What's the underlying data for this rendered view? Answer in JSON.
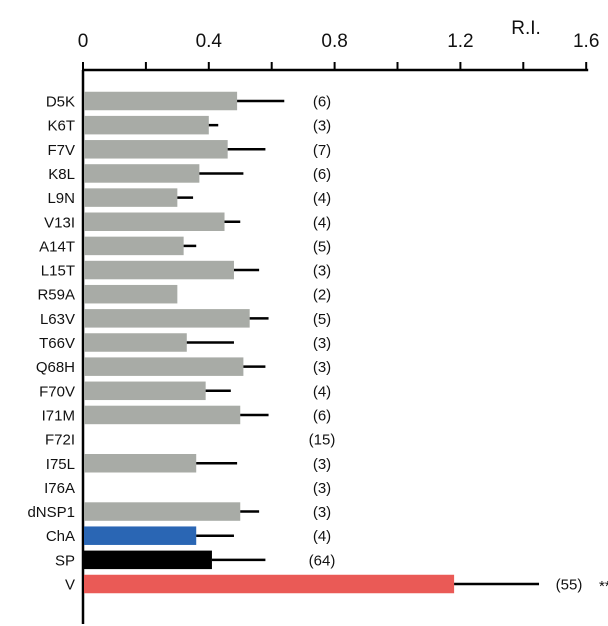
{
  "chart_data": {
    "type": "bar",
    "orientation": "horizontal",
    "axis_label": "R.I.",
    "xlim": [
      0,
      1.6
    ],
    "xticks": [
      "0",
      "0.4",
      "0.8",
      "1.2",
      "1.6"
    ],
    "categories": [
      "D5K",
      "K6T",
      "F7V",
      "K8L",
      "L9N",
      "V13I",
      "A14T",
      "L15T",
      "R59A",
      "L63V",
      "T66V",
      "Q68H",
      "F70V",
      "I71M",
      "F72I",
      "I75L",
      "I76A",
      "dNSP1",
      "ChA",
      "SP",
      "V"
    ],
    "values": [
      0.49,
      0.4,
      0.46,
      0.37,
      0.3,
      0.45,
      0.32,
      0.48,
      0.3,
      0.53,
      0.33,
      0.51,
      0.39,
      0.5,
      0,
      0.36,
      0,
      0.5,
      0.36,
      0.41,
      1.18
    ],
    "errors": [
      0.15,
      0.03,
      0.12,
      0.14,
      0.05,
      0.05,
      0.04,
      0.08,
      0,
      0.06,
      0.15,
      0.07,
      0.08,
      0.09,
      0,
      0.13,
      0,
      0.06,
      0.12,
      0.17,
      0.27
    ],
    "n_labels": [
      "(6)",
      "(3)",
      "(7)",
      "(6)",
      "(4)",
      "(4)",
      "(5)",
      "(3)",
      "(2)",
      "(5)",
      "(3)",
      "(3)",
      "(4)",
      "(6)",
      "(15)",
      "(3)",
      "(3)",
      "(3)",
      "(4)",
      "(64)",
      "(55)"
    ],
    "colors": [
      "#a8aba6",
      "#a8aba6",
      "#a8aba6",
      "#a8aba6",
      "#a8aba6",
      "#a8aba6",
      "#a8aba6",
      "#a8aba6",
      "#a8aba6",
      "#a8aba6",
      "#a8aba6",
      "#a8aba6",
      "#a8aba6",
      "#a8aba6",
      "#a8aba6",
      "#a8aba6",
      "#a8aba6",
      "#a8aba6",
      "#2a66b4",
      "#000000",
      "#ea5a56"
    ],
    "annotations": [
      {
        "category": "V",
        "text": "***"
      }
    ]
  }
}
